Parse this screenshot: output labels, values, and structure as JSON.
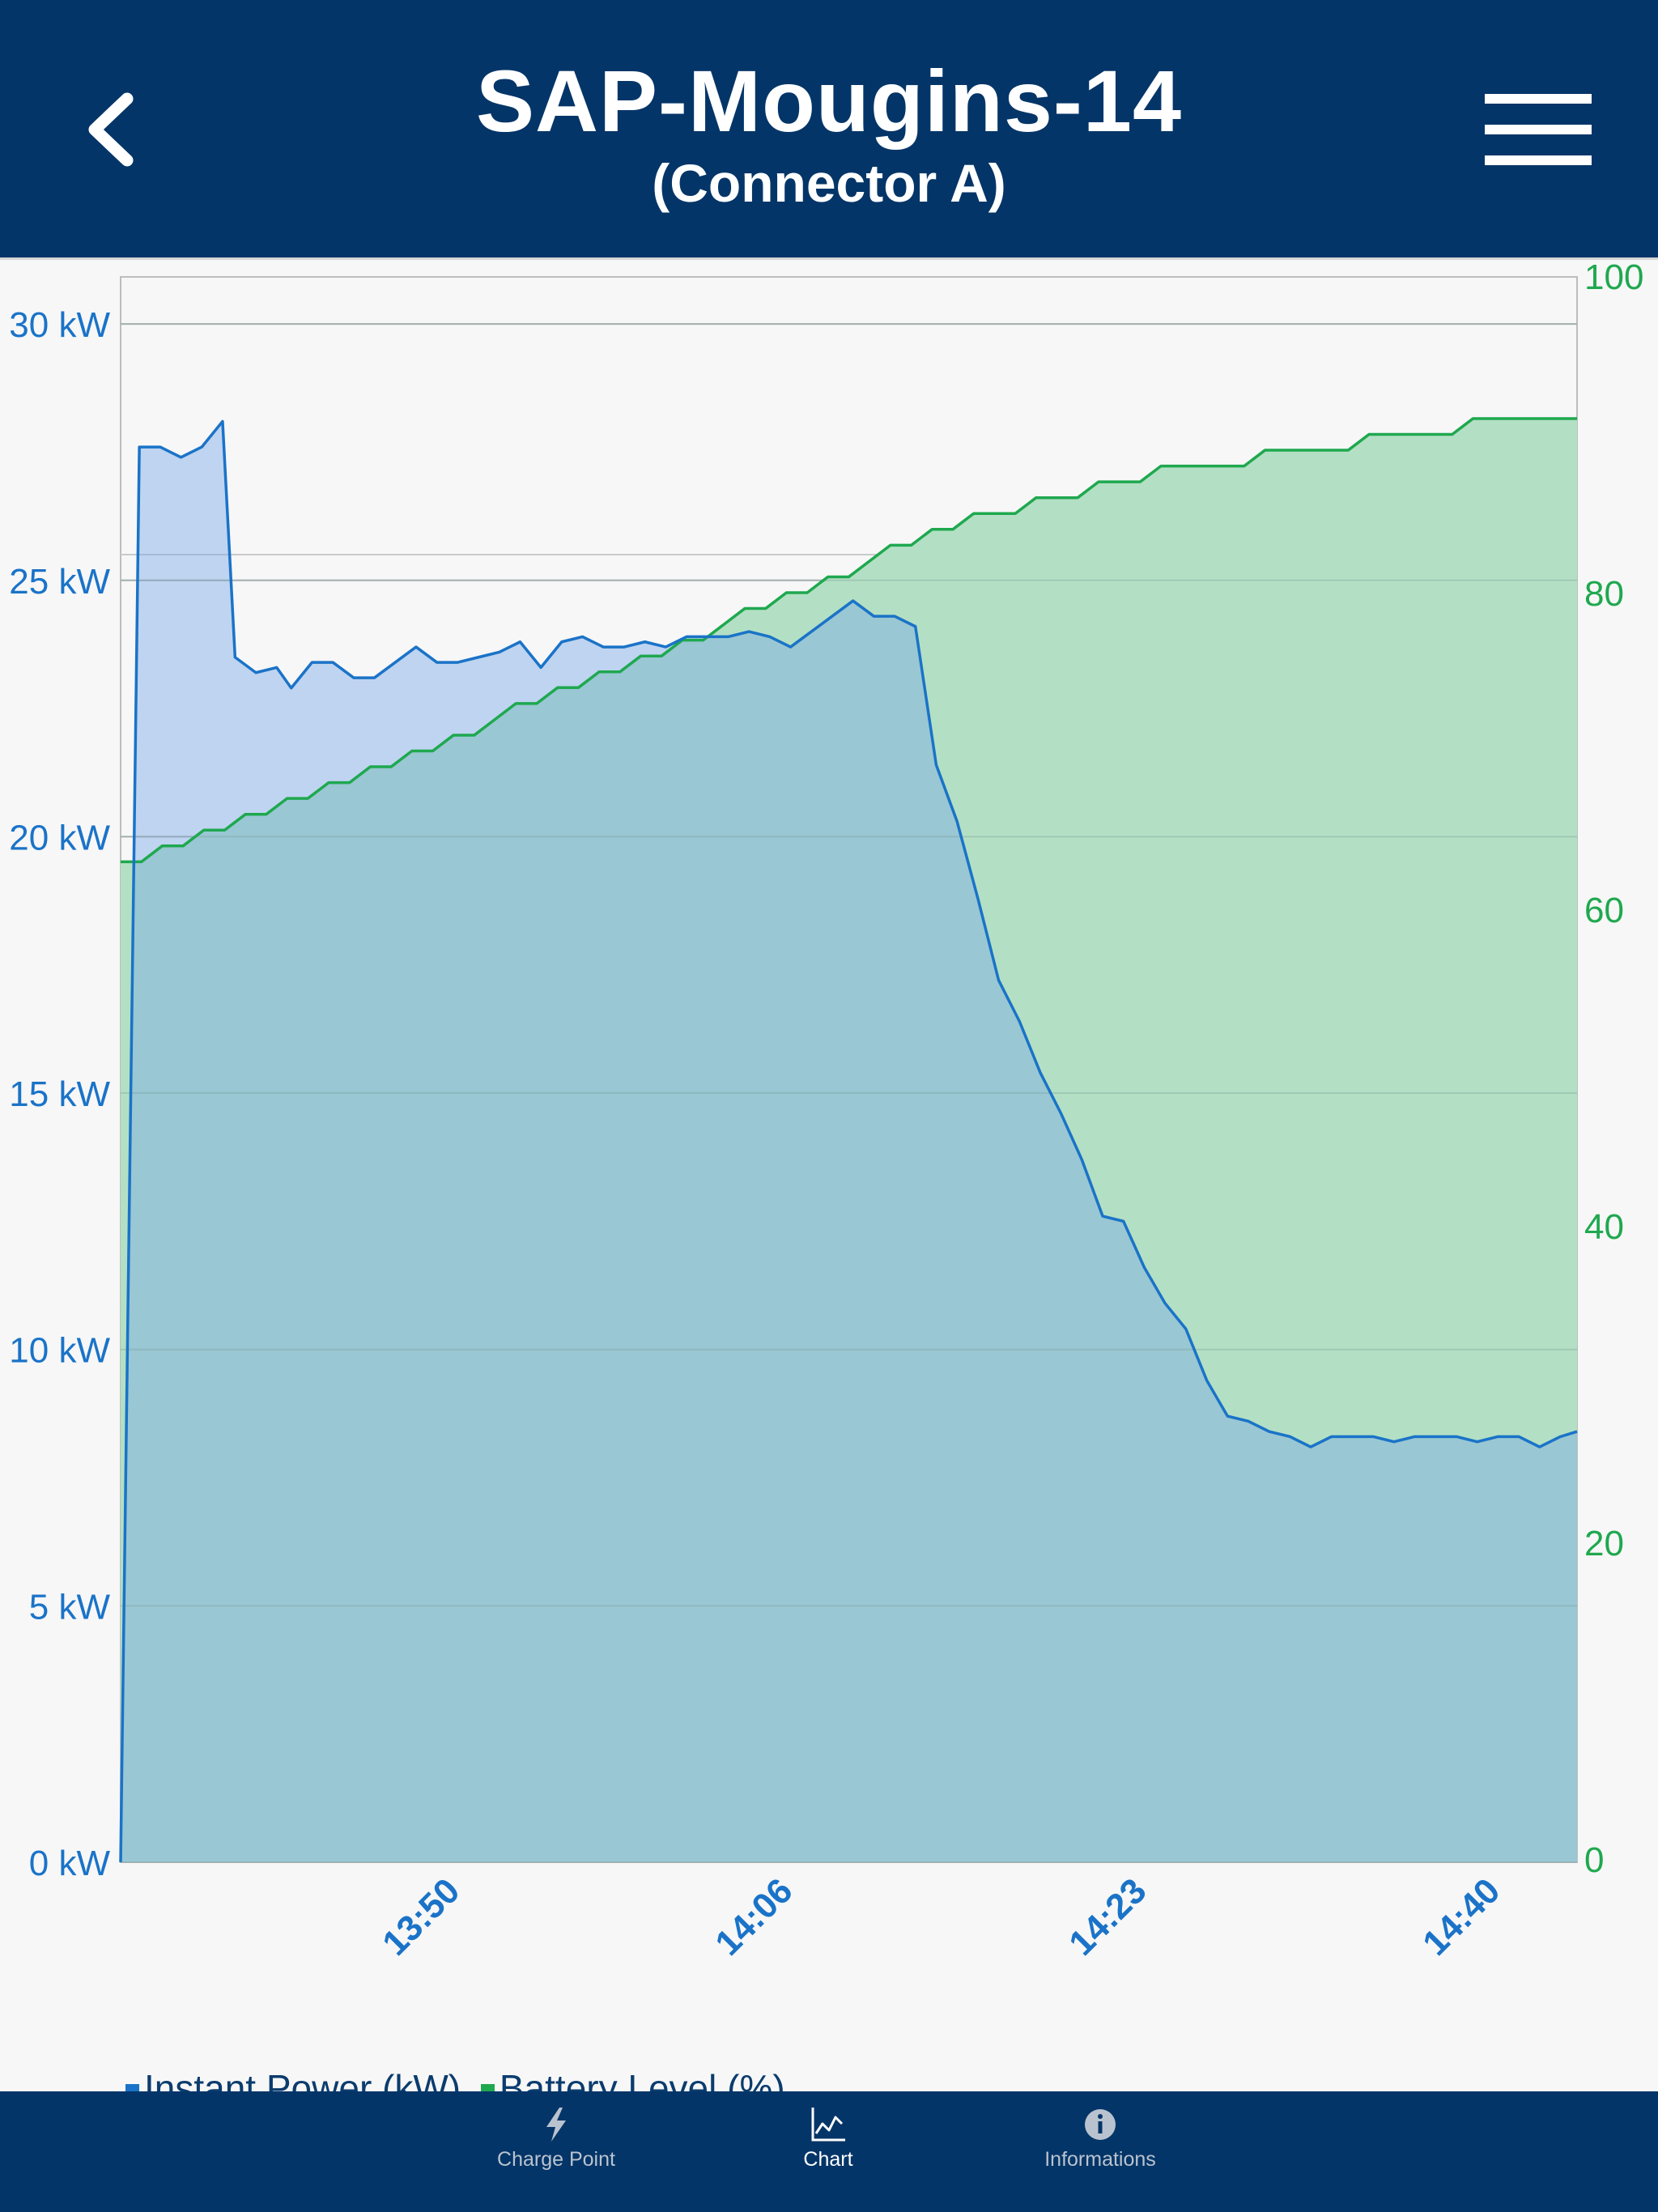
{
  "header": {
    "title": "SAP-Mougins-14",
    "subtitle": "(Connector A)"
  },
  "tabs": [
    {
      "label": "Charge Point",
      "icon": "bolt-icon",
      "active": false
    },
    {
      "label": "Chart",
      "icon": "chart-icon",
      "active": true
    },
    {
      "label": "Informations",
      "icon": "info-icon",
      "active": false
    }
  ],
  "legend": {
    "power_label": "Instant Power (kW)",
    "battery_label": "Battery Level (%)"
  },
  "colors": {
    "header_bg": "#043568",
    "power": "#1a73c8",
    "power_fill": "#a8c8ec",
    "battery": "#1fa84f",
    "battery_fill": "#b3e0c4",
    "overlap_fill": "#8ec8c0",
    "tab_inactive": "#b9c3cf",
    "tab_active": "#ffffff"
  },
  "chart_data": {
    "type": "area",
    "x_unit": "minutes",
    "x_range": [
      1,
      71
    ],
    "x_ticks": [
      {
        "label": "13:50",
        "x": 16
      },
      {
        "label": "14:06",
        "x": 32
      },
      {
        "label": "14:23",
        "x": 49
      },
      {
        "label": "14:40",
        "x": 66
      }
    ],
    "y_left": {
      "ticks": [
        "0 kW",
        "5 kW",
        "10 kW",
        "15 kW",
        "20 kW",
        "25 kW",
        "30 kW"
      ],
      "range": [
        0,
        31
      ]
    },
    "y_right": {
      "ticks": [
        "0",
        "20",
        "40",
        "60",
        "80",
        "100"
      ],
      "range": [
        0,
        100
      ]
    },
    "series": [
      {
        "name": "Instant Power (kW)",
        "axis": "left",
        "x": [
          1.0,
          1.9,
          2.1,
          2.9,
          3.9,
          4.9,
          5.9,
          6.5,
          7.5,
          8.5,
          9.2,
          10.2,
          11.2,
          12.2,
          13.2,
          14.2,
          15.2,
          16.2,
          17.2,
          18.2,
          19.2,
          20.2,
          21.2,
          22.2,
          23.2,
          24.2,
          25.2,
          26.2,
          27.2,
          28.2,
          29.2,
          30.2,
          31.2,
          32.2,
          33.2,
          34.2,
          35.2,
          36.2,
          37.2,
          38.2,
          39.2,
          40.2,
          41.2,
          42.2,
          43.2,
          44.2,
          45.2,
          46.2,
          47.2,
          48.2,
          49.2,
          50.2,
          51.2,
          52.2,
          53.2,
          54.2,
          55.2,
          56.2,
          57.2,
          58.2,
          59.2,
          60.2,
          61.2,
          62.2,
          63.2,
          64.2,
          65.2,
          66.2,
          67.2,
          68.2,
          69.2,
          70.2,
          71.0
        ],
        "values": [
          0.0,
          27.6,
          27.6,
          27.6,
          27.4,
          27.6,
          28.1,
          23.5,
          23.2,
          23.3,
          22.9,
          23.4,
          23.4,
          23.1,
          23.1,
          23.4,
          23.7,
          23.4,
          23.4,
          23.5,
          23.6,
          23.8,
          23.3,
          23.8,
          23.9,
          23.7,
          23.7,
          23.8,
          23.7,
          23.9,
          23.9,
          23.9,
          24.0,
          23.9,
          23.7,
          24.0,
          24.3,
          24.6,
          24.3,
          24.3,
          24.1,
          21.4,
          20.3,
          18.8,
          17.2,
          16.4,
          15.4,
          14.6,
          13.7,
          12.6,
          12.5,
          11.6,
          10.9,
          10.4,
          9.4,
          8.7,
          8.6,
          8.4,
          8.3,
          8.1,
          8.3,
          8.3,
          8.3,
          8.2,
          8.3,
          8.3,
          8.3,
          8.2,
          8.3,
          8.3,
          8.1,
          8.3,
          8.4
        ]
      },
      {
        "name": "Battery Level (%)",
        "axis": "right",
        "x": [
          1.0,
          2.0,
          3.0,
          4.0,
          5.0,
          6.0,
          7.0,
          8.0,
          9.0,
          10.0,
          11.0,
          12.0,
          13.0,
          14.0,
          15.0,
          16.0,
          17.0,
          18.0,
          19.0,
          20.0,
          21.0,
          22.0,
          23.0,
          24.0,
          25.0,
          26.0,
          27.0,
          28.0,
          29.0,
          30.0,
          31.0,
          32.0,
          33.0,
          34.0,
          35.0,
          36.0,
          37.0,
          38.0,
          39.0,
          40.0,
          41.0,
          42.0,
          43.0,
          44.0,
          45.0,
          46.0,
          47.0,
          48.0,
          49.0,
          50.0,
          51.0,
          52.0,
          53.0,
          54.0,
          55.0,
          56.0,
          57.0,
          58.0,
          59.0,
          60.0,
          61.0,
          62.0,
          63.0,
          64.0,
          65.0,
          66.0,
          67.0,
          68.0,
          69.0,
          70.0,
          71.0
        ],
        "values": [
          63,
          63,
          64,
          64,
          65,
          65,
          66,
          66,
          67,
          67,
          68,
          68,
          69,
          69,
          70,
          70,
          71,
          71,
          72,
          73,
          73,
          74,
          74,
          75,
          75,
          76,
          76,
          77,
          77,
          78,
          79,
          79,
          80,
          80,
          81,
          81,
          82,
          83,
          83,
          84,
          84,
          85,
          85,
          85,
          86,
          86,
          86,
          87,
          87,
          87,
          88,
          88,
          88,
          88,
          88,
          89,
          89,
          89,
          89,
          89,
          90,
          90,
          90,
          90,
          90,
          91,
          91,
          91,
          91,
          91,
          91
        ]
      }
    ]
  }
}
